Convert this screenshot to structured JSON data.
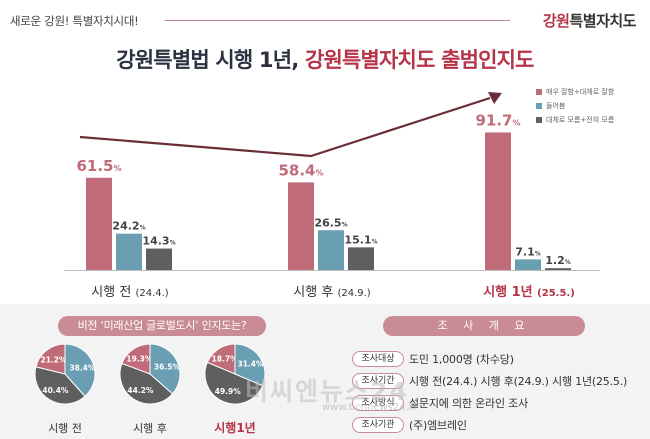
{
  "header": {
    "tagline": "새로운 강원! 특별자치시대!",
    "brand_main": "강원",
    "brand_rest": "특별자치도"
  },
  "headline": {
    "part1": "강원특별법 시행 1년,",
    "part2": "강원특별자치도 출범인지도"
  },
  "chart_data": [
    {
      "type": "bar",
      "categories": [
        "시행 전 (24.4.)",
        "시행 후 (24.9.)",
        "시행 1년 (25.5.)"
      ],
      "series": [
        {
          "name": "매우 잘함+대체로 잘함",
          "values": [
            61.5,
            58.4,
            91.7
          ],
          "color": "#c06b78"
        },
        {
          "name": "들어봄",
          "values": [
            24.2,
            26.5,
            7.1
          ],
          "color": "#6a9eb2"
        },
        {
          "name": "대체로 모름+전혀 모름",
          "values": [
            14.3,
            15.1,
            1.2
          ],
          "color": "#5f5f5f"
        }
      ],
      "trend_line": true,
      "ylim": [
        0,
        100
      ],
      "legend": "top-right",
      "grid": false
    },
    {
      "type": "pie",
      "title": "비전 ‘미래산업 글로벌도시’ 인지도는?",
      "pies": [
        {
          "label": "시행 전",
          "values": [
            21.2,
            38.4,
            40.4
          ]
        },
        {
          "label": "시행 후",
          "values": [
            19.3,
            36.5,
            44.2
          ]
        },
        {
          "label": "시행1년",
          "values": [
            18.7,
            31.4,
            49.9
          ]
        }
      ],
      "colors": [
        "#c06b78",
        "#6a9eb2",
        "#5f5f5f"
      ]
    }
  ],
  "survey": {
    "title": "조 사 개 요",
    "rows": [
      {
        "label": "조사대상",
        "value": "도민 1,000명 (차수당)"
      },
      {
        "label": "조사기간",
        "value": "시행 전(24.4.) 시행 후(24.9.) 시행 1년(25.5.)"
      },
      {
        "label": "조사방식",
        "value": "설문지에 의한 온라인 조사"
      },
      {
        "label": "조사기관",
        "value": "(주)엠브레인"
      }
    ]
  },
  "watermark": {
    "text": "비씨엔뉴스24",
    "url": "www.bcnnews24.kr"
  }
}
